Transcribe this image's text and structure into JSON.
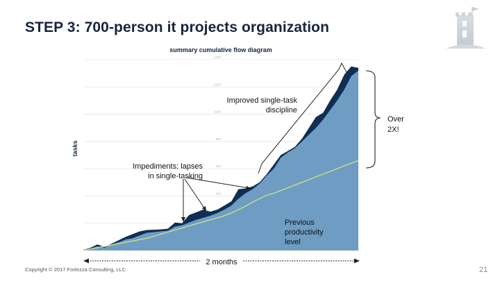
{
  "slide": {
    "title": "STEP 3: 700-person it projects organization",
    "copyright": "Copyright  © 2017 Fortezza Consulting, LLC",
    "page_number": "21"
  },
  "colors": {
    "title": "#17243d",
    "previous_area": "#6e9cc3",
    "improved_area": "#0f2e52",
    "previous_line": "#cbe08a"
  },
  "icons": [
    "castle-logo-icon"
  ],
  "chart_data": {
    "type": "area",
    "title": "summary cumulative flow diagram",
    "ylabel": "tasks",
    "xlabel": "2 months",
    "ylim": [
      0,
      1400
    ],
    "yticks": [
      400,
      600,
      800,
      1000,
      1200,
      1400
    ],
    "grid": true,
    "x": [
      0,
      1,
      2,
      3,
      4,
      5,
      6,
      7,
      8,
      9,
      10,
      11,
      12,
      13,
      14,
      15,
      16,
      17,
      18,
      19,
      20,
      21,
      22,
      23,
      24,
      25,
      26,
      27,
      28,
      29,
      30,
      31,
      32,
      33,
      34,
      35,
      36,
      37,
      38,
      39
    ],
    "series": [
      {
        "values": [
          5,
          15,
          30,
          20,
          45,
          60,
          80,
          90,
          110,
          130,
          135,
          140,
          145,
          175,
          185,
          205,
          225,
          240,
          255,
          275,
          300,
          330,
          380,
          420,
          450,
          490,
          550,
          600,
          680,
          720,
          750,
          800,
          850,
          900,
          960,
          1030,
          1100,
          1180,
          1280,
          1320
        ]
      },
      {
        "values": [
          5,
          20,
          45,
          25,
          50,
          75,
          100,
          120,
          140,
          150,
          152,
          155,
          160,
          205,
          200,
          260,
          280,
          300,
          285,
          300,
          330,
          360,
          450,
          455,
          470,
          500,
          560,
          630,
          700,
          730,
          760,
          820,
          900,
          980,
          1010,
          1100,
          1180,
          1290,
          1350,
          1340
        ]
      },
      {
        "values": [
          0,
          10,
          20,
          30,
          40,
          50,
          60,
          70,
          80,
          90,
          105,
          120,
          135,
          150,
          165,
          180,
          195,
          210,
          225,
          240,
          255,
          275,
          300,
          325,
          355,
          380,
          405,
          420,
          440,
          460,
          480,
          500,
          520,
          540,
          560,
          580,
          600,
          620,
          640,
          660
        ]
      }
    ],
    "annotations": {
      "improved": "Improved single-task\ndiscipline",
      "impediments": "Impediments; lapses\nin single-tasking",
      "previous": "Previous\nproductivity\nlevel",
      "over": "Over\n2X!"
    }
  }
}
